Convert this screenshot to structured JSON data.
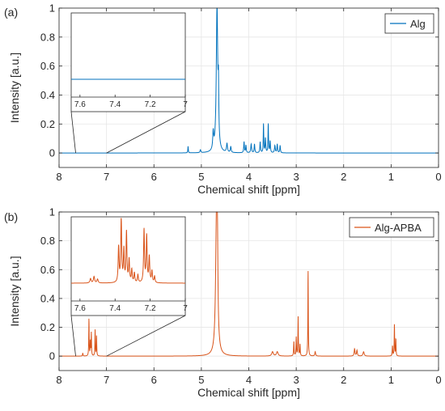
{
  "chart_data": [
    {
      "type": "line",
      "panel_label": "(a)",
      "xlabel": "Chemical shift [ppm]",
      "ylabel": "Intensity [a.u.]",
      "xlim": [
        8,
        0
      ],
      "ylim": [
        -0.1,
        1.0
      ],
      "x_ticks": [
        "8",
        "7",
        "6",
        "5",
        "4",
        "3",
        "2",
        "1",
        "0"
      ],
      "y_ticks": [
        "0",
        "0.2",
        "0.4",
        "0.6",
        "0.8",
        "1"
      ],
      "grid": true,
      "legend_position": "top-right",
      "color": "#0072BD",
      "series": [
        {
          "name": "Alg",
          "peaks": [
            {
              "x": 5.28,
              "h": 0.045,
              "w": 0.006
            },
            {
              "x": 5.02,
              "h": 0.02,
              "w": 0.01
            },
            {
              "x": 4.75,
              "h": 0.12,
              "w": 0.012
            },
            {
              "x": 4.67,
              "h": 1.0,
              "w": 0.018
            },
            {
              "x": 4.64,
              "h": 0.34,
              "w": 0.008
            },
            {
              "x": 4.46,
              "h": 0.06,
              "w": 0.012
            },
            {
              "x": 4.38,
              "h": 0.04,
              "w": 0.01
            },
            {
              "x": 4.1,
              "h": 0.075,
              "w": 0.008
            },
            {
              "x": 4.06,
              "h": 0.05,
              "w": 0.008
            },
            {
              "x": 3.95,
              "h": 0.06,
              "w": 0.01
            },
            {
              "x": 3.88,
              "h": 0.06,
              "w": 0.008
            },
            {
              "x": 3.76,
              "h": 0.075,
              "w": 0.008
            },
            {
              "x": 3.69,
              "h": 0.2,
              "w": 0.006
            },
            {
              "x": 3.65,
              "h": 0.1,
              "w": 0.008
            },
            {
              "x": 3.59,
              "h": 0.2,
              "w": 0.006
            },
            {
              "x": 3.55,
              "h": 0.08,
              "w": 0.008
            },
            {
              "x": 3.45,
              "h": 0.05,
              "w": 0.01
            },
            {
              "x": 3.4,
              "h": 0.06,
              "w": 0.008
            },
            {
              "x": 3.34,
              "h": 0.05,
              "w": 0.008
            }
          ]
        }
      ],
      "inset": {
        "xlim": [
          7.65,
          7.0
        ],
        "x_ticks": [
          "7.6",
          "7.4",
          "7.2",
          "7"
        ],
        "level": 0.0
      }
    },
    {
      "type": "line",
      "panel_label": "(b)",
      "xlabel": "Chemical shift [ppm]",
      "ylabel": "Intensity [a.u.]",
      "xlim": [
        8,
        0
      ],
      "ylim": [
        -0.1,
        1.0
      ],
      "x_ticks": [
        "8",
        "7",
        "6",
        "5",
        "4",
        "3",
        "2",
        "1",
        "0"
      ],
      "y_ticks": [
        "0",
        "0.2",
        "0.4",
        "0.6",
        "0.8",
        "1"
      ],
      "grid": true,
      "legend_position": "top-right",
      "color": "#D95319",
      "series": [
        {
          "name": "Alg-APBA",
          "peaks": [
            {
              "x": 7.5,
              "h": 0.02,
              "w": 0.006
            },
            {
              "x": 7.37,
              "h": 0.26,
              "w": 0.005
            },
            {
              "x": 7.34,
              "h": 0.1,
              "w": 0.005
            },
            {
              "x": 7.32,
              "h": 0.16,
              "w": 0.005
            },
            {
              "x": 7.24,
              "h": 0.18,
              "w": 0.005
            },
            {
              "x": 7.21,
              "h": 0.14,
              "w": 0.005
            },
            {
              "x": 4.68,
              "h": 1.0,
              "w": 0.022
            },
            {
              "x": 4.66,
              "h": 0.42,
              "w": 0.01
            },
            {
              "x": 3.5,
              "h": 0.03,
              "w": 0.02
            },
            {
              "x": 3.4,
              "h": 0.03,
              "w": 0.02
            },
            {
              "x": 3.05,
              "h": 0.1,
              "w": 0.006
            },
            {
              "x": 3.0,
              "h": 0.13,
              "w": 0.006
            },
            {
              "x": 2.96,
              "h": 0.27,
              "w": 0.005
            },
            {
              "x": 2.92,
              "h": 0.08,
              "w": 0.006
            },
            {
              "x": 2.75,
              "h": 0.6,
              "w": 0.005
            },
            {
              "x": 2.6,
              "h": 0.03,
              "w": 0.01
            },
            {
              "x": 1.77,
              "h": 0.05,
              "w": 0.01
            },
            {
              "x": 1.72,
              "h": 0.04,
              "w": 0.01
            },
            {
              "x": 1.58,
              "h": 0.03,
              "w": 0.015
            },
            {
              "x": 0.97,
              "h": 0.07,
              "w": 0.006
            },
            {
              "x": 0.93,
              "h": 0.22,
              "w": 0.005
            },
            {
              "x": 0.9,
              "h": 0.12,
              "w": 0.005
            }
          ]
        }
      ],
      "inset": {
        "xlim": [
          7.65,
          7.0
        ],
        "x_ticks": [
          "7.6",
          "7.4",
          "7.2",
          "7"
        ],
        "level": 0.0,
        "peaks": [
          {
            "x": 7.54,
            "h": 0.07,
            "w": 0.004
          },
          {
            "x": 7.52,
            "h": 0.1,
            "w": 0.004
          },
          {
            "x": 7.5,
            "h": 0.06,
            "w": 0.004
          },
          {
            "x": 7.38,
            "h": 0.55,
            "w": 0.003
          },
          {
            "x": 7.365,
            "h": 1.0,
            "w": 0.003
          },
          {
            "x": 7.35,
            "h": 0.5,
            "w": 0.003
          },
          {
            "x": 7.335,
            "h": 0.78,
            "w": 0.003
          },
          {
            "x": 7.32,
            "h": 0.35,
            "w": 0.003
          },
          {
            "x": 7.305,
            "h": 0.2,
            "w": 0.003
          },
          {
            "x": 7.29,
            "h": 0.15,
            "w": 0.003
          },
          {
            "x": 7.27,
            "h": 0.12,
            "w": 0.003
          },
          {
            "x": 7.235,
            "h": 0.82,
            "w": 0.003
          },
          {
            "x": 7.22,
            "h": 0.72,
            "w": 0.003
          },
          {
            "x": 7.205,
            "h": 0.4,
            "w": 0.003
          },
          {
            "x": 7.19,
            "h": 0.18,
            "w": 0.003
          },
          {
            "x": 7.175,
            "h": 0.1,
            "w": 0.003
          }
        ]
      }
    }
  ]
}
